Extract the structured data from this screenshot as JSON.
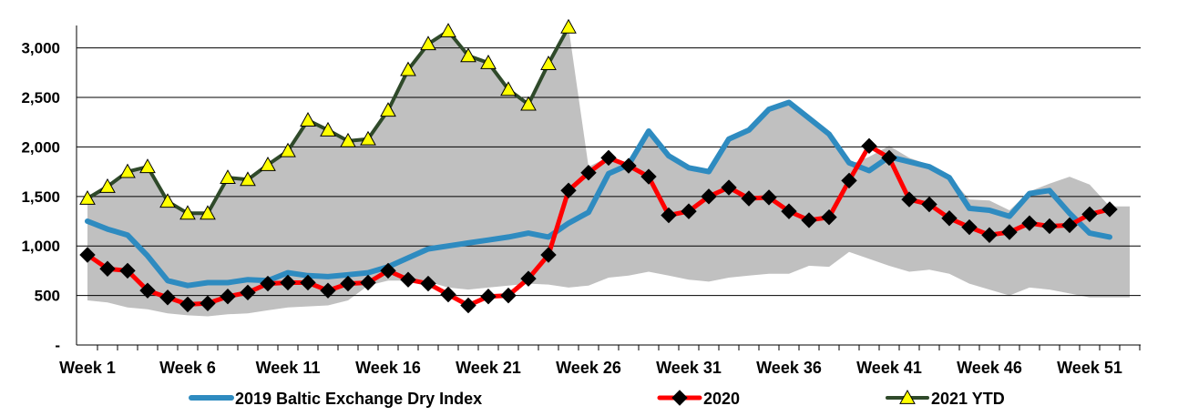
{
  "chart_data": {
    "type": "line",
    "title": "",
    "xlabel": "",
    "ylabel": "",
    "ylim": [
      0,
      3300
    ],
    "xlim": [
      1,
      53
    ],
    "y_ticks": [
      0,
      500,
      1000,
      1500,
      2000,
      2500,
      3000
    ],
    "y_tick_labels": [
      "-",
      "500",
      "1,000",
      "1,500",
      "2,000",
      "2,500",
      "3,000"
    ],
    "x_ticks": [
      1,
      6,
      11,
      16,
      21,
      26,
      31,
      36,
      41,
      46,
      51
    ],
    "x_tick_labels": [
      "Week 1",
      "Week 6",
      "Week 11",
      "Week 16",
      "Week 21",
      "Week 26",
      "Week 31",
      "Week 36",
      "Week 41",
      "Week 46",
      "Week 51"
    ],
    "grid": "horizontal",
    "legend_position": "bottom",
    "range_band": {
      "color": "#c0c0c0",
      "x": [
        1,
        2,
        3,
        4,
        5,
        6,
        7,
        8,
        9,
        10,
        11,
        12,
        13,
        14,
        15,
        16,
        17,
        18,
        19,
        20,
        21,
        22,
        23,
        24,
        25,
        26,
        27,
        28,
        29,
        30,
        31,
        32,
        33,
        34,
        35,
        36,
        37,
        38,
        39,
        40,
        41,
        42,
        43,
        44,
        45,
        46,
        47,
        48,
        49,
        50,
        51,
        52,
        53
      ],
      "lower": [
        450,
        430,
        380,
        360,
        320,
        300,
        290,
        310,
        320,
        350,
        380,
        390,
        400,
        450,
        600,
        650,
        650,
        640,
        580,
        560,
        580,
        600,
        620,
        610,
        580,
        600,
        680,
        700,
        740,
        700,
        660,
        640,
        680,
        700,
        720,
        720,
        800,
        790,
        940,
        870,
        800,
        740,
        760,
        720,
        620,
        560,
        500,
        580,
        560,
        520,
        480,
        480,
        480
      ],
      "upper": [
        1480,
        1600,
        1750,
        1800,
        1450,
        1330,
        1330,
        1690,
        1670,
        1820,
        1960,
        2270,
        2170,
        2060,
        2080,
        2370,
        2780,
        3040,
        3170,
        2920,
        2850,
        2580,
        2430,
        2840,
        3210,
        1800,
        1900,
        1800,
        2160,
        1920,
        1790,
        1740,
        2080,
        2160,
        2370,
        2460,
        2290,
        2120,
        1820,
        1900,
        2010,
        1890,
        1820,
        1700,
        1470,
        1460,
        1360,
        1550,
        1630,
        1700,
        1620,
        1400,
        1400
      ]
    },
    "series": [
      {
        "name": "2019 Baltic Exchange Dry Index",
        "color": "#2e8bc0",
        "marker": "none",
        "x": [
          1,
          2,
          3,
          4,
          5,
          6,
          7,
          8,
          9,
          10,
          11,
          12,
          13,
          14,
          15,
          16,
          17,
          18,
          19,
          20,
          21,
          22,
          23,
          24,
          25,
          26,
          27,
          28,
          29,
          30,
          31,
          32,
          33,
          34,
          35,
          36,
          37,
          38,
          39,
          40,
          41,
          42,
          43,
          44,
          45,
          46,
          47,
          48,
          49,
          50,
          51,
          52
        ],
        "values": [
          1250,
          1170,
          1110,
          900,
          650,
          600,
          630,
          630,
          660,
          650,
          730,
          700,
          690,
          710,
          730,
          790,
          880,
          970,
          1000,
          1030,
          1060,
          1090,
          1130,
          1090,
          1230,
          1340,
          1730,
          1820,
          2160,
          1910,
          1790,
          1750,
          2080,
          2170,
          2380,
          2450,
          2290,
          2130,
          1840,
          1760,
          1900,
          1850,
          1800,
          1690,
          1380,
          1360,
          1300,
          1530,
          1560,
          1330,
          1130,
          1090
        ]
      },
      {
        "name": "2020",
        "color": "#ff0000",
        "marker": "diamond",
        "x": [
          1,
          2,
          3,
          4,
          5,
          6,
          7,
          8,
          9,
          10,
          11,
          12,
          13,
          14,
          15,
          16,
          17,
          18,
          19,
          20,
          21,
          22,
          23,
          24,
          25,
          26,
          27,
          28,
          29,
          30,
          31,
          32,
          33,
          34,
          35,
          36,
          37,
          38,
          39,
          40,
          41,
          42,
          43,
          44,
          45,
          46,
          47,
          48,
          49,
          50,
          51,
          52
        ],
        "values": [
          910,
          770,
          750,
          550,
          480,
          410,
          420,
          490,
          530,
          620,
          630,
          630,
          550,
          620,
          630,
          750,
          660,
          620,
          510,
          400,
          490,
          500,
          670,
          910,
          1560,
          1740,
          1890,
          1810,
          1700,
          1310,
          1350,
          1500,
          1590,
          1480,
          1490,
          1350,
          1260,
          1290,
          1660,
          2010,
          1890,
          1470,
          1420,
          1280,
          1190,
          1110,
          1140,
          1230,
          1200,
          1210,
          1320,
          1370
        ]
      },
      {
        "name": "2021 YTD",
        "color": "#2f4a2a",
        "marker": "triangle",
        "marker_color": "#ffff00",
        "x": [
          1,
          2,
          3,
          4,
          5,
          6,
          7,
          8,
          9,
          10,
          11,
          12,
          13,
          14,
          15,
          16,
          17,
          18,
          19,
          20,
          21,
          22,
          23,
          24,
          25
        ],
        "values": [
          1480,
          1600,
          1750,
          1800,
          1450,
          1330,
          1330,
          1690,
          1670,
          1820,
          1960,
          2270,
          2170,
          2060,
          2080,
          2370,
          2780,
          3040,
          3170,
          2920,
          2850,
          2580,
          2430,
          2840,
          3210
        ]
      }
    ]
  }
}
